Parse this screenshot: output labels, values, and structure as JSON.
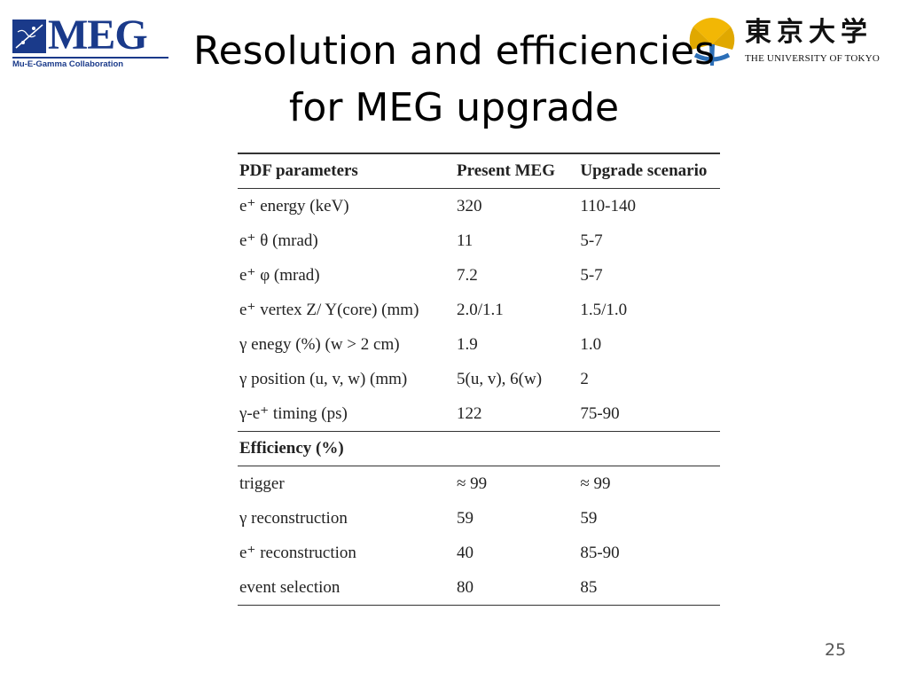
{
  "header": {
    "title_line1": "Resolution and efficiencies",
    "title_line2": "for MEG upgrade",
    "meg_logo": {
      "text": "MEG",
      "subtitle": "Mu-E-Gamma Collaboration",
      "icon": "meg-emblem-icon",
      "color": "#1a3a8a"
    },
    "ut_logo": {
      "kanji": "東京大学",
      "text": "THE UNIVERSITY OF TOKYO",
      "icon": "ut-ginkgo-icon",
      "color": "#f2b705"
    }
  },
  "table": {
    "headers": [
      "PDF parameters",
      "Present MEG",
      "Upgrade scenario"
    ],
    "pdf_rows": [
      [
        "e⁺ energy (keV)",
        "320",
        "110-140"
      ],
      [
        "e⁺ θ (mrad)",
        "11",
        "5-7"
      ],
      [
        "e⁺ φ (mrad)",
        "7.2",
        "5-7"
      ],
      [
        "e⁺ vertex Z/ Y(core) (mm)",
        "2.0/1.1",
        "1.5/1.0"
      ],
      [
        "γ enegy (%) (w > 2 cm)",
        "1.9",
        "1.0"
      ],
      [
        "γ position (u, v, w) (mm)",
        "5(u, v), 6(w)",
        "2"
      ],
      [
        "γ-e⁺ timing (ps)",
        "122",
        "75-90"
      ]
    ],
    "efficiency_header": "Efficiency (%)",
    "efficiency_rows": [
      [
        "trigger",
        "≈ 99",
        "≈ 99"
      ],
      [
        "γ reconstruction",
        "59",
        "59"
      ],
      [
        "e⁺ reconstruction",
        "40",
        "85-90"
      ],
      [
        "event selection",
        "80",
        "85"
      ]
    ]
  },
  "footer": {
    "page_number": "25"
  }
}
